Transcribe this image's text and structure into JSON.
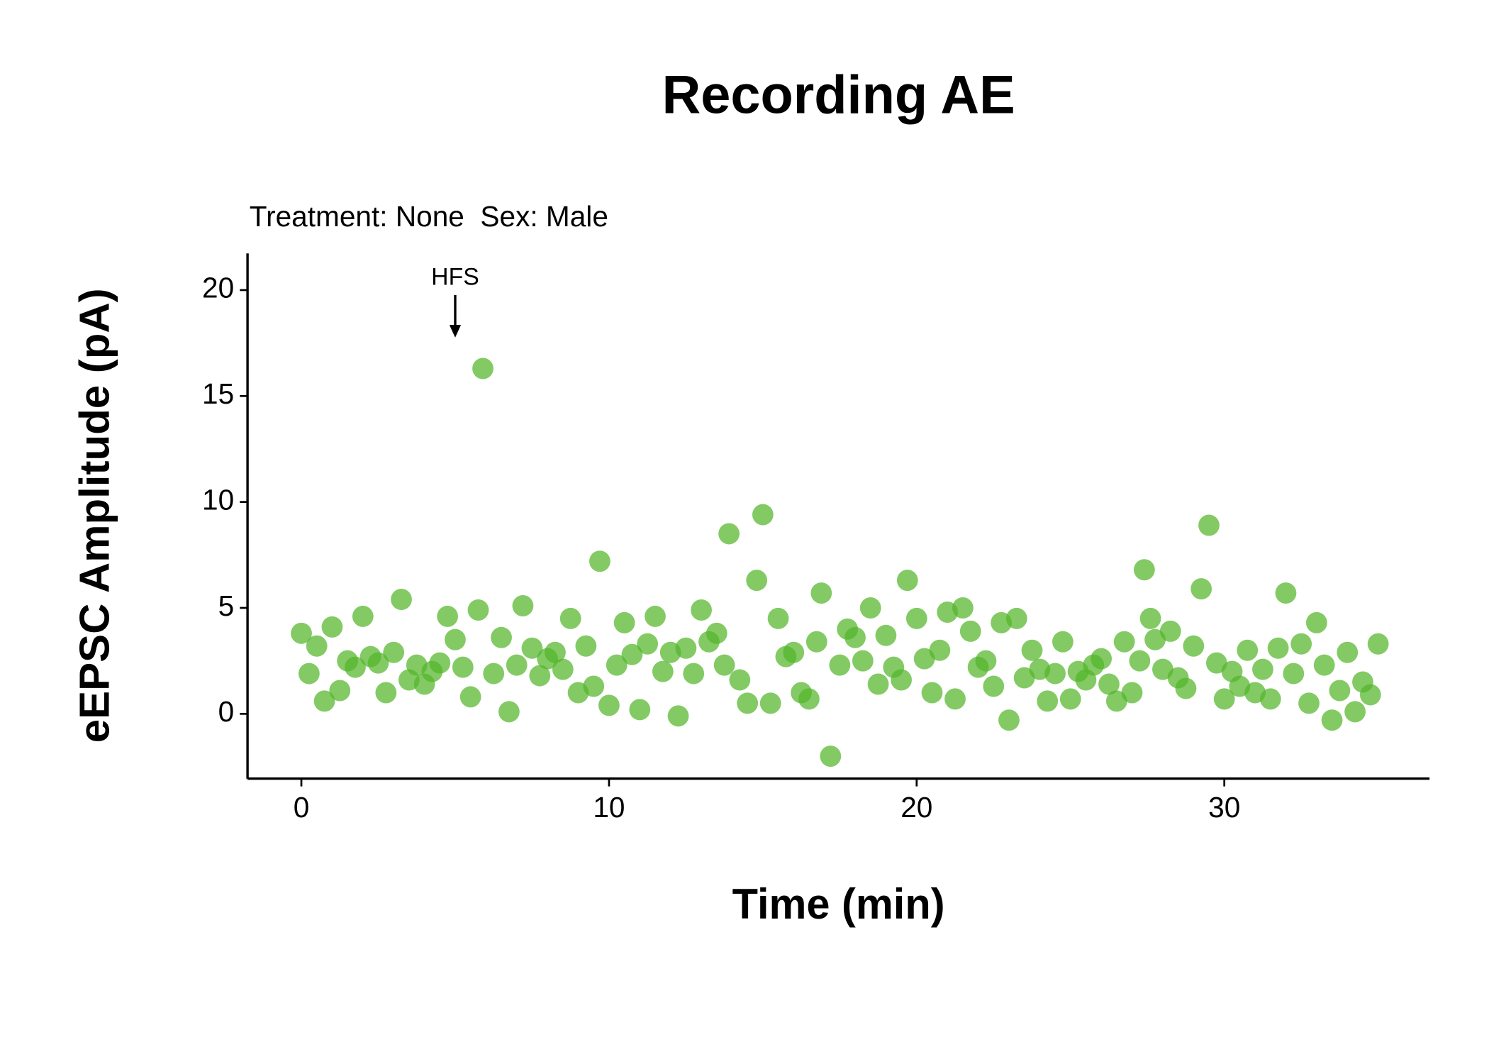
{
  "chart_data": {
    "type": "scatter",
    "title": "Recording AE",
    "subtitle": "Treatment: None  Sex: Male",
    "x_label": "Time (min)",
    "y_label": "eEPSC Amplitude (pA)",
    "xlim": [
      -1.75,
      36.67
    ],
    "ylim": [
      -3.06,
      21.73
    ],
    "xticks": [
      0,
      10,
      20,
      30
    ],
    "yticks": [
      0,
      5,
      10,
      15,
      20
    ],
    "grid": false,
    "annotations": [
      {
        "text": "HFS",
        "x": 5
      }
    ],
    "series": [
      {
        "color": "#53b52a",
        "x": [
          0,
          0.25,
          0.5,
          0.75,
          1,
          1.25,
          1.5,
          1.75,
          2,
          2.25,
          2.5,
          2.75,
          3,
          3.25,
          3.5,
          3.75,
          4,
          4.25,
          4.5,
          4.75,
          5,
          5.25,
          5.5,
          5.75,
          5.9,
          6.25,
          6.5,
          6.75,
          7,
          7.2,
          7.5,
          7.75,
          8,
          8.25,
          8.5,
          8.75,
          9,
          9.25,
          9.5,
          9.7,
          10,
          10.25,
          10.5,
          10.75,
          11,
          11.25,
          11.5,
          11.75,
          12,
          12.25,
          12.5,
          12.75,
          13,
          13.25,
          13.5,
          13.75,
          13.9,
          14.25,
          14.5,
          14.8,
          15,
          15.25,
          15.5,
          15.75,
          16,
          16.25,
          16.5,
          16.75,
          16.9,
          17.2,
          17.5,
          17.75,
          18,
          18.25,
          18.5,
          18.75,
          19,
          19.25,
          19.5,
          19.7,
          20,
          20.25,
          20.5,
          20.75,
          21,
          21.25,
          21.5,
          21.75,
          22,
          22.25,
          22.5,
          22.75,
          23,
          23.25,
          23.5,
          23.75,
          24,
          24.25,
          24.5,
          24.75,
          25,
          25.25,
          25.5,
          25.75,
          26,
          26.25,
          26.5,
          26.75,
          27,
          27.25,
          27.4,
          27.6,
          27.75,
          28,
          28.25,
          28.5,
          28.75,
          29,
          29.25,
          29.5,
          29.75,
          30,
          30.25,
          30.5,
          30.75,
          31,
          31.25,
          31.5,
          31.75,
          32,
          32.25,
          32.5,
          32.75,
          33,
          33.25,
          33.5,
          33.75,
          34,
          34.25,
          34.5,
          34.75,
          35
        ],
        "values": [
          3.8,
          1.9,
          3.2,
          0.6,
          4.1,
          1.1,
          2.5,
          2.2,
          4.6,
          2.7,
          2.4,
          1.0,
          2.9,
          5.4,
          1.6,
          2.3,
          1.4,
          2.0,
          2.4,
          4.6,
          3.5,
          2.2,
          0.8,
          4.9,
          16.3,
          1.9,
          3.6,
          0.1,
          2.3,
          5.1,
          3.1,
          1.8,
          2.6,
          2.9,
          2.1,
          4.5,
          1.0,
          3.2,
          1.3,
          7.2,
          0.4,
          2.3,
          4.3,
          2.8,
          0.2,
          3.3,
          4.6,
          2.0,
          2.9,
          -0.1,
          3.1,
          1.9,
          4.9,
          3.4,
          3.8,
          2.3,
          8.5,
          1.6,
          0.5,
          6.3,
          9.4,
          0.5,
          4.5,
          2.7,
          2.9,
          1.0,
          0.7,
          3.4,
          5.7,
          -2.0,
          2.3,
          4.0,
          3.6,
          2.5,
          5.0,
          1.4,
          3.7,
          2.2,
          1.6,
          6.3,
          4.5,
          2.6,
          1.0,
          3.0,
          4.8,
          0.7,
          5.0,
          3.9,
          2.2,
          2.5,
          1.3,
          4.3,
          -0.3,
          4.5,
          1.7,
          3.0,
          2.1,
          0.6,
          1.9,
          3.4,
          0.7,
          2.0,
          1.6,
          2.3,
          2.6,
          1.4,
          0.6,
          3.4,
          1.0,
          2.5,
          6.8,
          4.5,
          3.5,
          2.1,
          3.9,
          1.7,
          1.2,
          3.2,
          5.9,
          8.9,
          2.4,
          0.7,
          2.0,
          1.3,
          3.0,
          1.0,
          2.1,
          0.7,
          3.1,
          5.7,
          1.9,
          3.3,
          0.5,
          4.3,
          2.3,
          -0.3,
          1.1,
          2.9,
          0.1,
          1.5,
          0.9,
          3.3
        ]
      }
    ]
  }
}
